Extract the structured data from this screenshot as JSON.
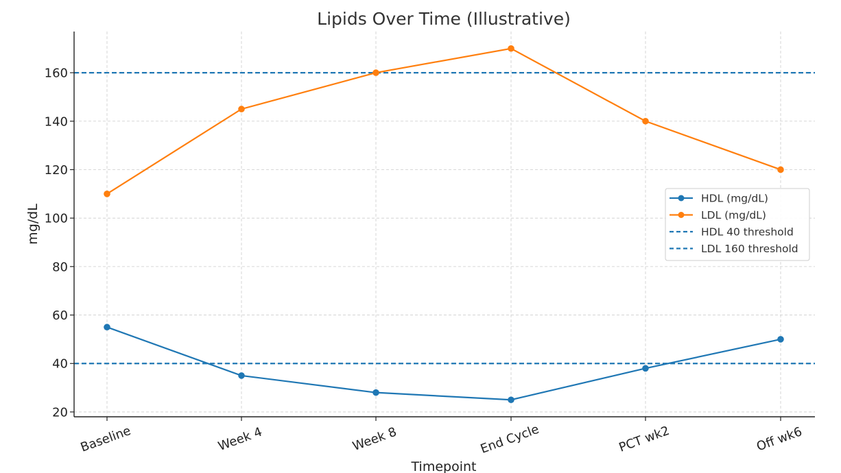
{
  "chart_data": {
    "type": "line",
    "title": "Lipids Over Time (Illustrative)",
    "xlabel": "Timepoint",
    "ylabel": "mg/dL",
    "categories": [
      "Baseline",
      "Week 4",
      "Week 8",
      "End Cycle",
      "PCT wk2",
      "Off wk6"
    ],
    "ylim": [
      18,
      177
    ],
    "yticks": [
      20,
      40,
      60,
      80,
      100,
      120,
      140,
      160
    ],
    "grid": true,
    "legend_position": "center-right",
    "series": [
      {
        "name": "HDL (mg/dL)",
        "values": [
          55,
          35,
          28,
          25,
          38,
          50
        ],
        "color": "#1f77b4",
        "style": "solid-marker"
      },
      {
        "name": "LDL (mg/dL)",
        "values": [
          110,
          145,
          160,
          170,
          140,
          120
        ],
        "color": "#ff7f0e",
        "style": "solid-marker"
      }
    ],
    "thresholds": [
      {
        "name": "HDL 40 threshold",
        "value": 40,
        "color": "#1f77b4",
        "style": "dashed"
      },
      {
        "name": "LDL 160 threshold",
        "value": 160,
        "color": "#1f77b4",
        "style": "dashed"
      }
    ]
  }
}
